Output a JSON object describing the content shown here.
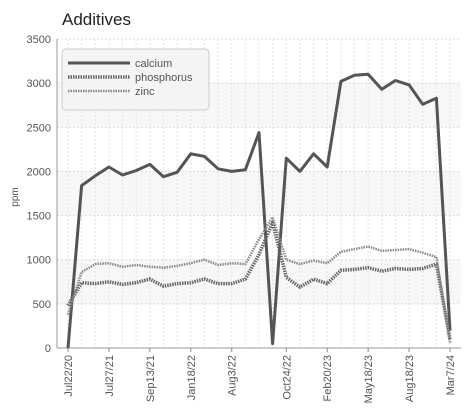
{
  "chart_data": {
    "type": "line",
    "title": "Additives",
    "xlabel": "",
    "ylabel": "ppm",
    "ylim": [
      0,
      3500
    ],
    "yticks": [
      0,
      500,
      1000,
      1500,
      2000,
      2500,
      3000,
      3500
    ],
    "x_ticks": [
      "Jul22/20",
      "Jul27/21",
      "Sep13/21",
      "Jan18/22",
      "Aug3/22",
      "Oct24/22",
      "Feb20/23",
      "May18/23",
      "Aug18/23",
      "Mar7/24"
    ],
    "x_tick_positions": [
      0,
      3,
      6,
      9,
      12,
      16,
      19,
      22,
      25,
      28
    ],
    "grid": true,
    "legend_position": "top-left",
    "series": [
      {
        "name": "calcium",
        "color": "#555555",
        "values": [
          0,
          1840,
          1950,
          2050,
          1960,
          2010,
          2080,
          1940,
          1990,
          2200,
          2170,
          2030,
          2000,
          2020,
          2440,
          50,
          2150,
          2000,
          2200,
          2050,
          3020,
          3090,
          3100,
          2930,
          3030,
          2980,
          2760,
          2830,
          200
        ]
      },
      {
        "name": "phosphorus",
        "color": "#666666",
        "values": [
          480,
          740,
          730,
          750,
          720,
          740,
          780,
          700,
          730,
          740,
          780,
          730,
          730,
          780,
          1060,
          1420,
          800,
          690,
          780,
          730,
          880,
          890,
          910,
          870,
          900,
          890,
          900,
          950,
          100
        ]
      },
      {
        "name": "zinc",
        "color": "#8a8a8a",
        "values": [
          380,
          860,
          950,
          960,
          920,
          940,
          920,
          910,
          930,
          960,
          1000,
          940,
          960,
          950,
          1230,
          1480,
          1000,
          950,
          990,
          960,
          1090,
          1120,
          1150,
          1100,
          1110,
          1120,
          1080,
          1030,
          60
        ]
      }
    ]
  }
}
